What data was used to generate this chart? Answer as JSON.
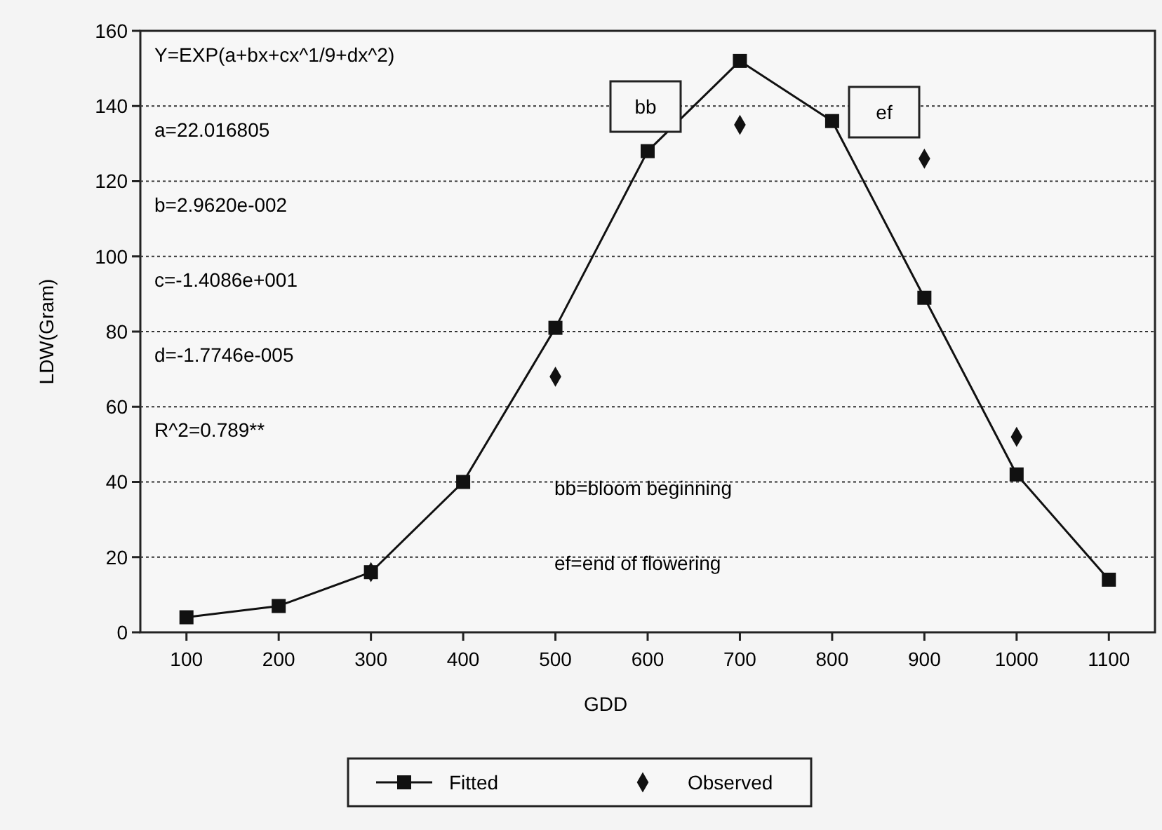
{
  "chart_data": {
    "type": "line",
    "xlabel": "GDD",
    "ylabel": "LDW(Gram)",
    "xlim": [
      50,
      1150
    ],
    "xticks": [
      100,
      200,
      300,
      400,
      500,
      600,
      700,
      800,
      900,
      1000,
      1100
    ],
    "ylim": [
      0,
      160
    ],
    "yticks": [
      0,
      20,
      40,
      60,
      80,
      100,
      120,
      140,
      160
    ],
    "grid": "y",
    "legend": "bottom",
    "series": [
      {
        "name": "Fitted",
        "color": "#111111",
        "marker": "square",
        "line_style": "solid",
        "x": [
          100,
          200,
          300,
          400,
          500,
          600,
          700,
          800,
          900,
          1000,
          1100
        ],
        "values": [
          4,
          7,
          16,
          40,
          81,
          128,
          152,
          136,
          89,
          42,
          14
        ]
      },
      {
        "name": "Observed",
        "type": "scatter",
        "color": "#111111",
        "marker": "diamond",
        "x": [
          300,
          500,
          700,
          900,
          1000
        ],
        "values": [
          16,
          68,
          135,
          126,
          52
        ]
      }
    ],
    "annotations": [
      "Y=EXP(a+bx+cx^1/9+dx^2)",
      "a=22.016805",
      "b=2.9620e-002",
      "c=-1.4086e+001",
      "d=-1.7746e-005",
      "R^2=0.789**",
      "bb=bloom beginning",
      "ef=end of flowering",
      "bb",
      "ef"
    ]
  }
}
